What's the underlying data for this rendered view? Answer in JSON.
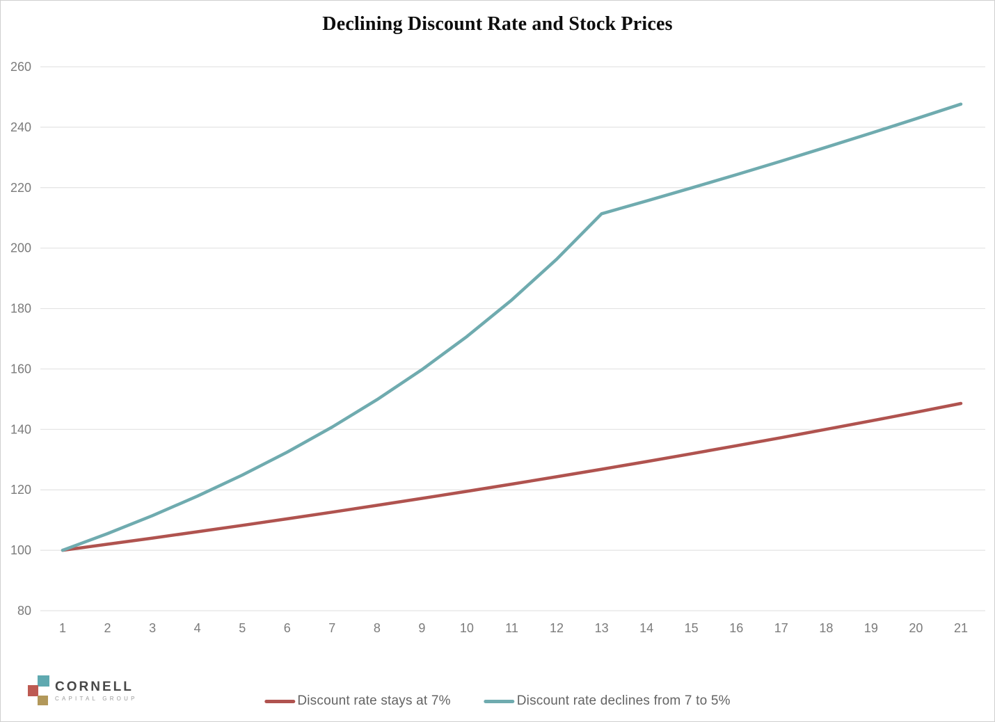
{
  "chart_data": {
    "type": "line",
    "title": "Declining Discount Rate and Stock Prices",
    "x": [
      1,
      2,
      3,
      4,
      5,
      6,
      7,
      8,
      9,
      10,
      11,
      12,
      13,
      14,
      15,
      16,
      17,
      18,
      19,
      20,
      21
    ],
    "series": [
      {
        "name": "Discount rate stays at 7%",
        "color": "#b0534f",
        "values": [
          100,
          102,
          104.04,
          106.12,
          108.24,
          110.41,
          112.62,
          114.87,
          117.17,
          119.51,
          121.9,
          124.34,
          126.82,
          129.36,
          131.95,
          134.59,
          137.28,
          140.02,
          142.82,
          145.68,
          148.59
        ]
      },
      {
        "name": "Discount rate declines from 7 to 5%",
        "color": "#6fabaf",
        "values": [
          100,
          105.52,
          111.47,
          117.91,
          124.89,
          132.49,
          140.77,
          149.83,
          159.77,
          170.72,
          182.84,
          196.32,
          211.37,
          215.6,
          219.91,
          224.31,
          228.79,
          233.37,
          238.04,
          242.8,
          247.65
        ]
      }
    ],
    "ylim": [
      80,
      260
    ],
    "ytick_step": 20,
    "ytick_labels": [
      "80",
      "100",
      "120",
      "140",
      "160",
      "180",
      "200",
      "220",
      "240",
      "260"
    ],
    "grid": "horizontal",
    "grid_color": "#e3e3e3",
    "tick_label_color": "#7b7b7b",
    "legend_position": "bottom-center",
    "line_width": 4.5
  },
  "logo": {
    "name": "CORNELL",
    "subtitle": "CAPITAL GROUP",
    "square_colors": {
      "teal": "#5fa9b0",
      "red": "#bd5a52",
      "gold": "#b2985a"
    }
  }
}
